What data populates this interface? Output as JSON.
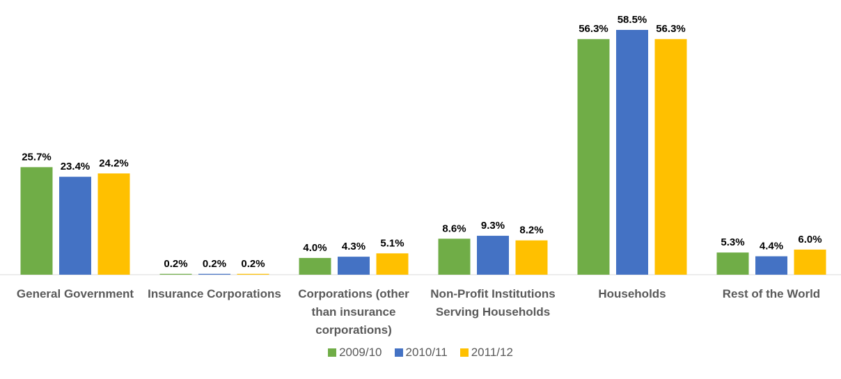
{
  "chart_data": {
    "type": "bar",
    "categories": [
      "General Government",
      "Insurance Corporations",
      "Corporations (other than insurance corporations)",
      "Non-Profit Institutions Serving Households",
      "Households",
      "Rest of the World"
    ],
    "series": [
      {
        "name": "2009/10",
        "color": "#70ad47",
        "values": [
          25.7,
          0.2,
          4.0,
          8.6,
          56.3,
          5.3
        ],
        "value_labels": [
          "25.7%",
          "0.2%",
          "4.0%",
          "8.6%",
          "56.3%",
          "5.3%"
        ]
      },
      {
        "name": "2010/11",
        "color": "#4472c4",
        "values": [
          23.4,
          0.2,
          4.3,
          9.3,
          58.5,
          4.4
        ],
        "value_labels": [
          "23.4%",
          "0.2%",
          "4.3%",
          "9.3%",
          "58.5%",
          "4.4%"
        ]
      },
      {
        "name": "2011/12",
        "color": "#ffc000",
        "values": [
          24.2,
          0.2,
          5.1,
          8.2,
          56.3,
          6.0
        ],
        "value_labels": [
          "24.2%",
          "0.2%",
          "5.1%",
          "8.2%",
          "56.3%",
          "6.0%"
        ]
      }
    ],
    "legend": "bottom"
  }
}
